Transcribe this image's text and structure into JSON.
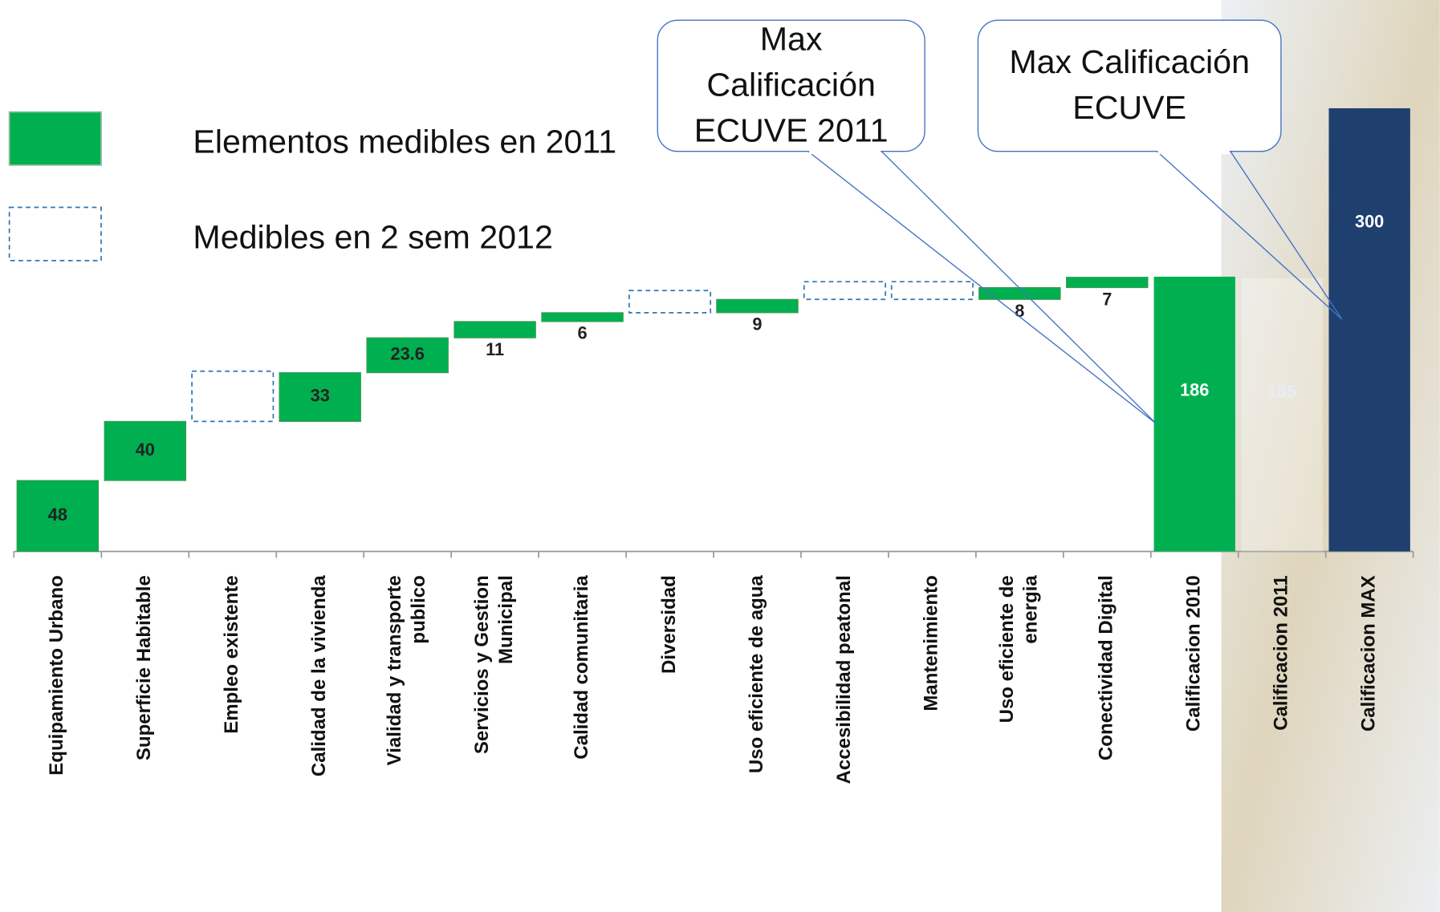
{
  "chart_data": {
    "type": "waterfall",
    "categories": [
      [
        "Equipamiento Urbano"
      ],
      [
        "Superficie Habitable"
      ],
      [
        "Empleo existente"
      ],
      [
        "Calidad de la vivienda"
      ],
      [
        "Vialidad y transporte",
        "publico"
      ],
      [
        "Servicios y Gestion",
        "Municipal"
      ],
      [
        "Calidad comunitaria"
      ],
      [
        "Diversidad"
      ],
      [
        "Uso eficiente de agua"
      ],
      [
        "Accesibilidad peatonal"
      ],
      [
        "Mantenimiento"
      ],
      [
        "Uso eficiente de",
        "energia"
      ],
      [
        "Conectividad Digital"
      ],
      [
        "Calificacion 2010"
      ],
      [
        "Calificacion 2011"
      ],
      [
        "Calificacion MAX"
      ]
    ],
    "values": [
      48,
      40,
      34,
      33,
      23.6,
      11,
      6,
      15,
      9,
      12,
      12,
      8,
      7,
      186,
      185,
      300
    ],
    "kinds": [
      "increase",
      "increase",
      "pending",
      "increase",
      "increase",
      "increase",
      "increase",
      "pending",
      "increase",
      "pending",
      "pending",
      "increase",
      "increase",
      "total",
      "total",
      "total"
    ],
    "colors": [
      "#00b050",
      "#00b050",
      "#2e75b6",
      "#00b050",
      "#00b050",
      "#00b050",
      "#00b050",
      "#2e75b6",
      "#00b050",
      "#2e75b6",
      "#2e75b6",
      "#00b050",
      "#00b050",
      "#00b050",
      "rgba(255,255,255,0.3)",
      "#1f3f6e"
    ],
    "label_colors": [
      "#222",
      "#222",
      "#222",
      "#222",
      "#222",
      "#222",
      "#222",
      "#222",
      "#222",
      "#222",
      "#222",
      "#222",
      "#222",
      "#ffffff",
      "#e8eef4",
      "#ffffff"
    ],
    "ylim": [
      0,
      300
    ],
    "legend": [
      {
        "name": "Elementos medibles en 2011",
        "color": "#00b050",
        "style": "solid"
      },
      {
        "name": "Medibles en 2 sem 2012",
        "color": "#2e75b6",
        "style": "dashed"
      }
    ],
    "annotations": [
      {
        "lines": [
          "Max",
          "Calificación",
          "ECUVE 2011"
        ],
        "target": 13
      },
      {
        "lines": [
          "Max Calificación",
          "ECUVE"
        ],
        "target": 15
      }
    ]
  }
}
